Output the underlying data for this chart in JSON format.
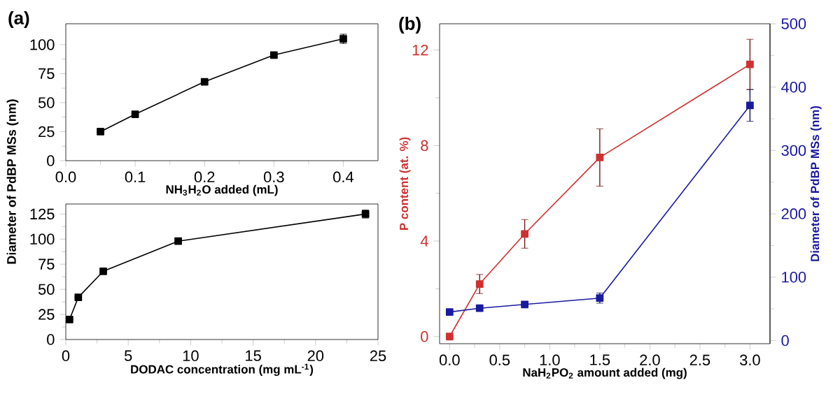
{
  "chart_data": [
    {
      "type": "line",
      "xlabel": "NH$_{3}$H$_{2}$O added (mL)",
      "ylabel": "Diameter of PdBP MSs (nm)",
      "annotations": [
        "(a)"
      ],
      "x": [
        0.05,
        0.1,
        0.2,
        0.3,
        0.4
      ],
      "xlim": [
        0,
        0.45
      ],
      "xticks": [
        {
          "value": 0,
          "label": "0.0"
        },
        0.1,
        0.2,
        0.3,
        0.4
      ],
      "ylim": [
        0,
        118
      ],
      "yticks": [
        0,
        25,
        50,
        75,
        100
      ],
      "marker": "square",
      "line_style": "solid",
      "grid": false,
      "series": [
        {
          "color": "#000000",
          "values": [
            25,
            40,
            68,
            91,
            105
          ],
          "errors": [
            null,
            null,
            null,
            2,
            4
          ]
        }
      ]
    },
    {
      "type": "line",
      "xlabel": "DODAC concentration (mg mL$^{-1}$)",
      "x": [
        0.3,
        1,
        3,
        9,
        24
      ],
      "xlim": [
        0,
        25
      ],
      "xticks": [
        0,
        5,
        10,
        15,
        20,
        25
      ],
      "ylim": [
        0,
        135
      ],
      "yticks": [
        0,
        25,
        50,
        75,
        100,
        125
      ],
      "marker": "square",
      "line_style": "solid",
      "grid": false,
      "series": [
        {
          "color": "#000000",
          "values": [
            20,
            42,
            68,
            98,
            125
          ],
          "errors": [
            null,
            null,
            null,
            3,
            4
          ]
        }
      ]
    },
    {
      "type": "line",
      "xlabel": "NaH$_{2}$PO$_{2}$ amount added (mg)",
      "ylabel": "P content (at. %)",
      "y2label": "Diameter of PdBP MSs (nm)",
      "annotations": [
        "(b)"
      ],
      "x": [
        0,
        0.3,
        0.75,
        1.5,
        3.0
      ],
      "xlim": [
        -0.1,
        3.2
      ],
      "xticks": [
        {
          "value": 0,
          "label": "0.0"
        },
        0.5,
        {
          "value": 1,
          "label": "1.0"
        },
        1.5,
        {
          "value": 2,
          "label": "2.0"
        },
        2.5,
        {
          "value": 3,
          "label": "3.0"
        }
      ],
      "ylim": [
        -0.3,
        13.1
      ],
      "yticks": [
        0,
        4,
        8,
        12
      ],
      "y2lim": [
        -5,
        500
      ],
      "y2ticks": [
        0,
        100,
        200,
        300,
        400,
        500
      ],
      "marker": "square",
      "line_style": "solid",
      "grid": false,
      "series": [
        {
          "color": "#d03030",
          "values": [
            0,
            2.2,
            4.3,
            7.5,
            11.4
          ],
          "errors": [
            null,
            0.4,
            0.6,
            1.2,
            1.05
          ]
        },
        {
          "color": "#1a1aa0",
          "axis": "y2",
          "values": [
            45,
            51,
            57,
            67,
            371
          ],
          "errors": [
            null,
            null,
            null,
            8,
            25
          ]
        }
      ]
    }
  ]
}
